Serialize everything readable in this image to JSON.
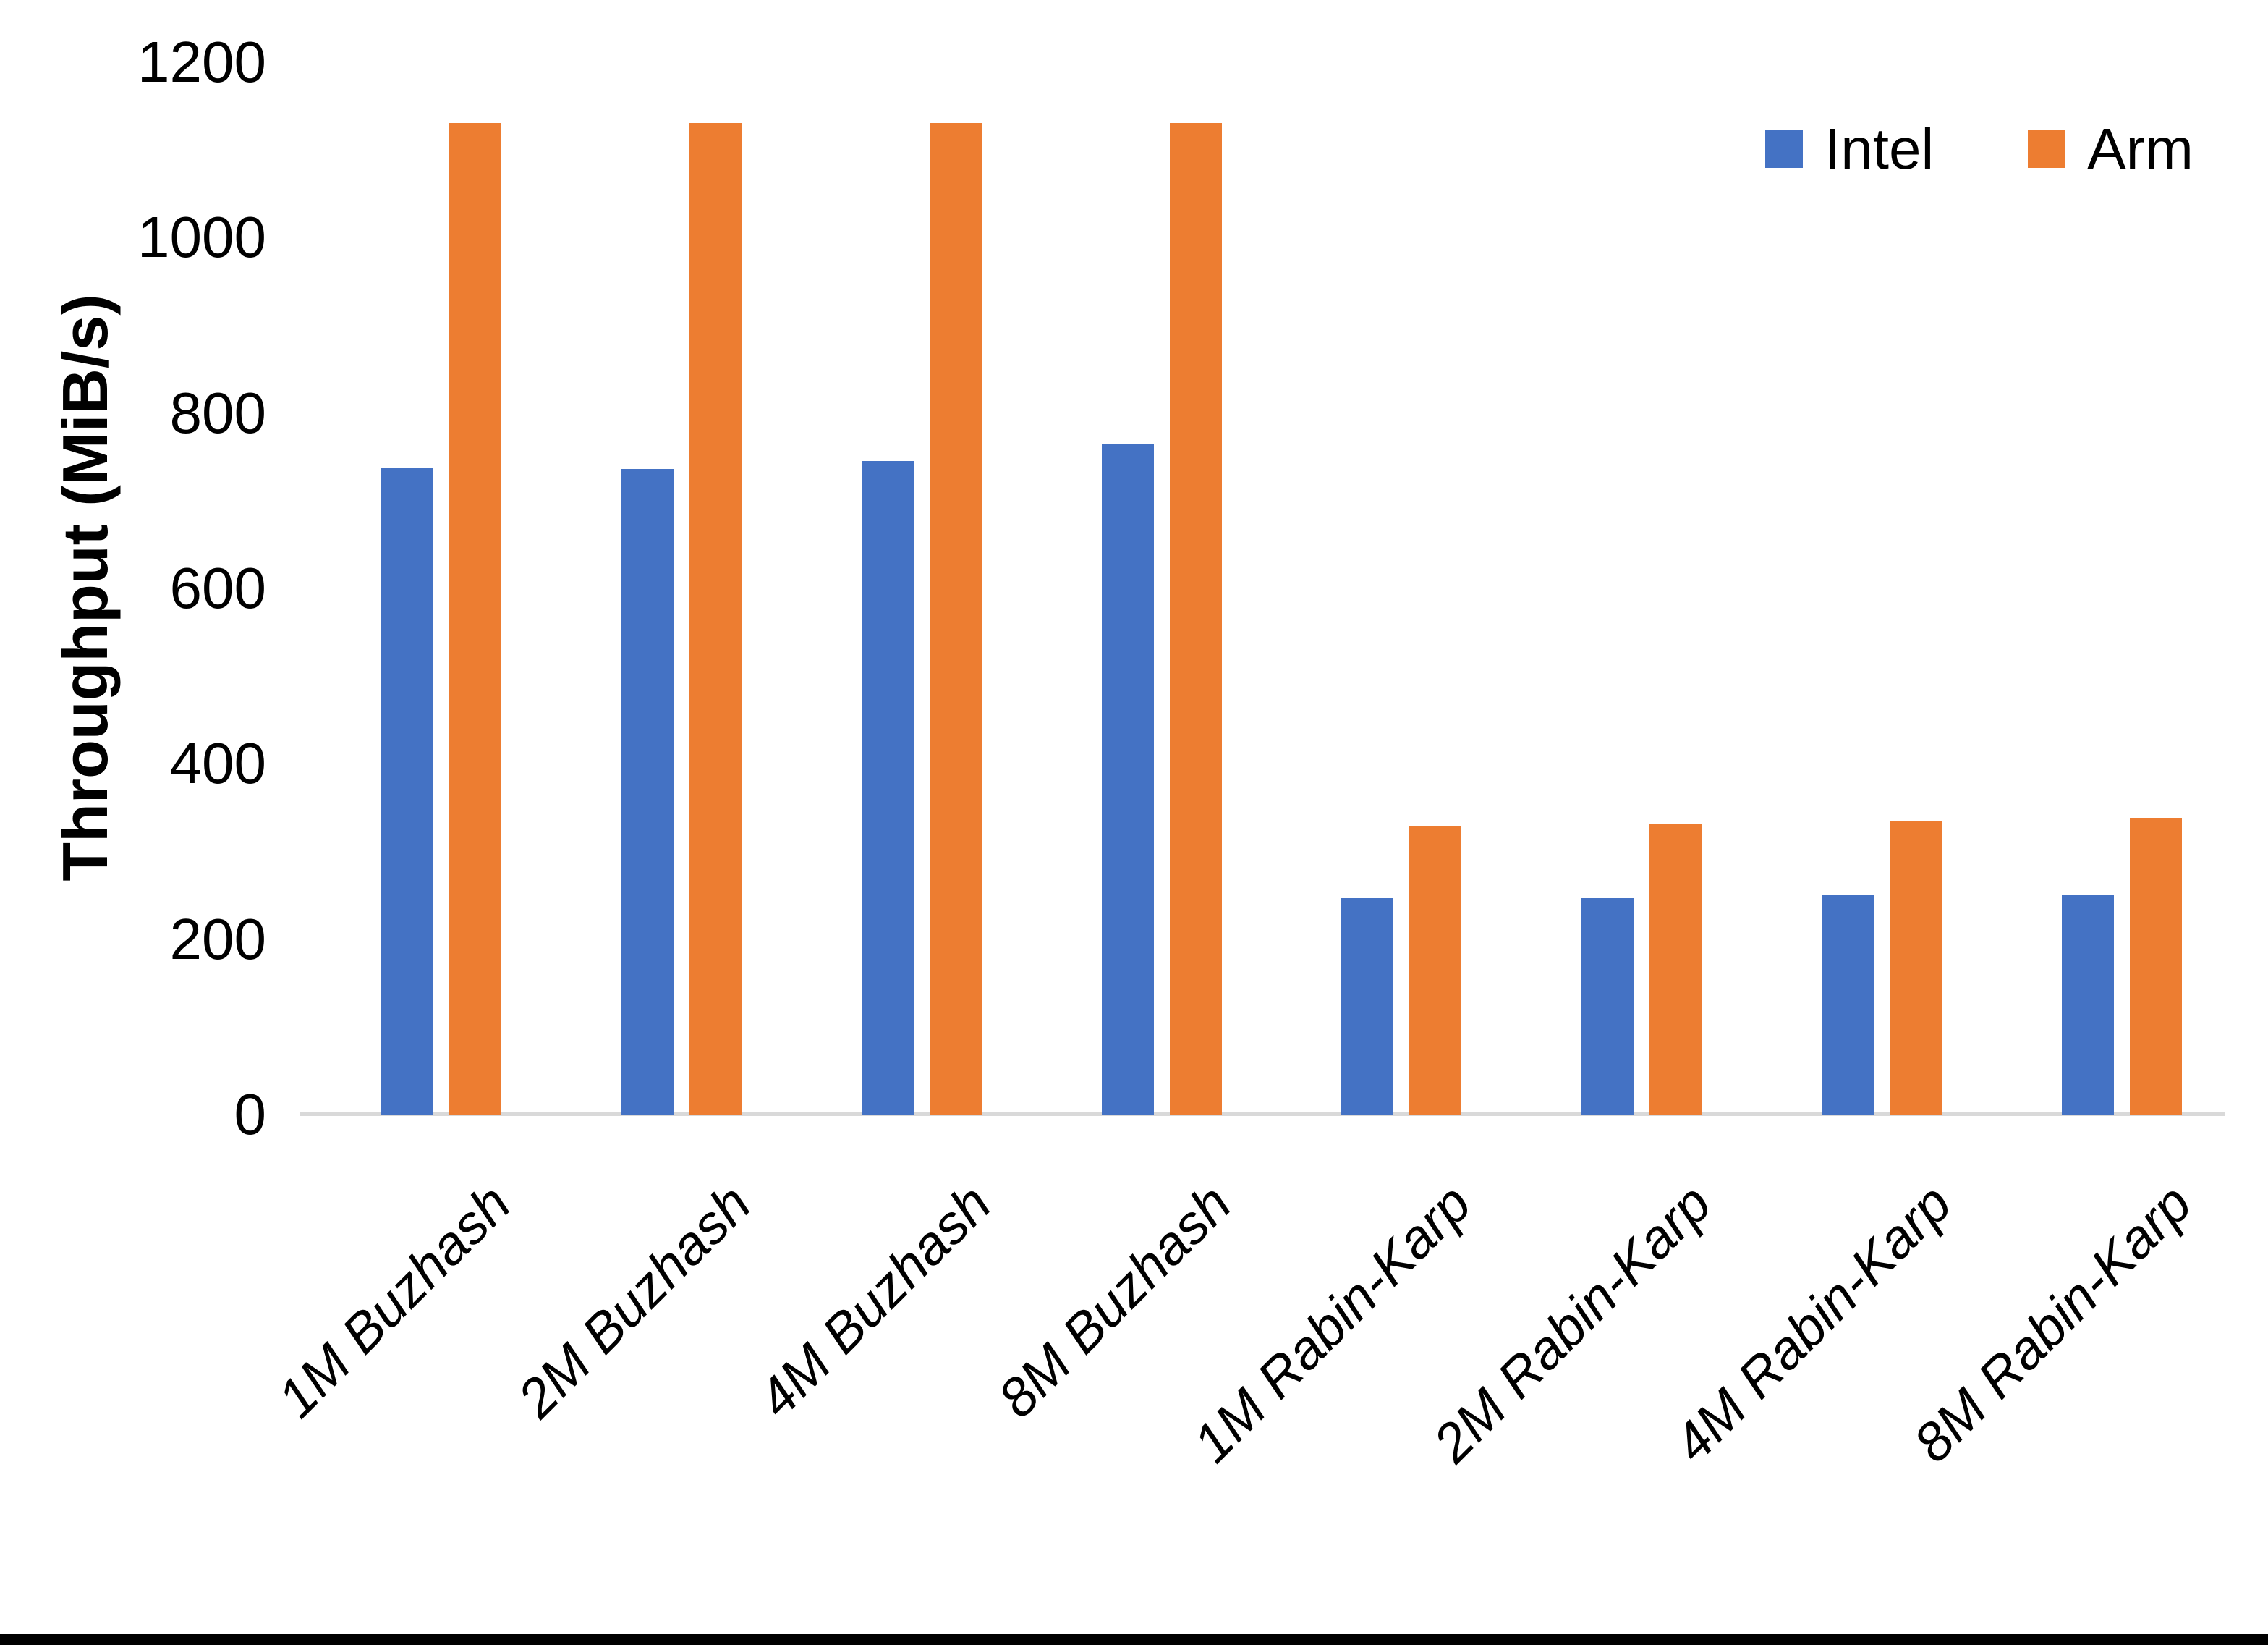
{
  "chart_data": {
    "type": "bar",
    "title": "",
    "xlabel": "",
    "ylabel": "Throughput (MiB/s)",
    "ylim": [
      0,
      1200
    ],
    "yticks": [
      0,
      200,
      400,
      600,
      800,
      1000,
      1200
    ],
    "grid": false,
    "legend_position": "top-right",
    "categories": [
      "1M Buzhash",
      "2M Buzhash",
      "4M Buzhash",
      "8M Buzhash",
      "1M Rabin-Karp",
      "2M Rabin-Karp",
      "4M Rabin-Karp",
      "8M Rabin-Karp"
    ],
    "series": [
      {
        "name": "Intel",
        "color": "#4472C4",
        "values": [
          737,
          736,
          745,
          764,
          247,
          247,
          251,
          251
        ]
      },
      {
        "name": "Arm",
        "color": "#ED7D31",
        "values": [
          1131,
          1131,
          1131,
          1131,
          329,
          331,
          334,
          338
        ]
      }
    ]
  },
  "colors": {
    "background": "#FFFFFF",
    "text": "#000000",
    "axis_line": "#D9D9D9",
    "bottom_border": "#000000"
  }
}
